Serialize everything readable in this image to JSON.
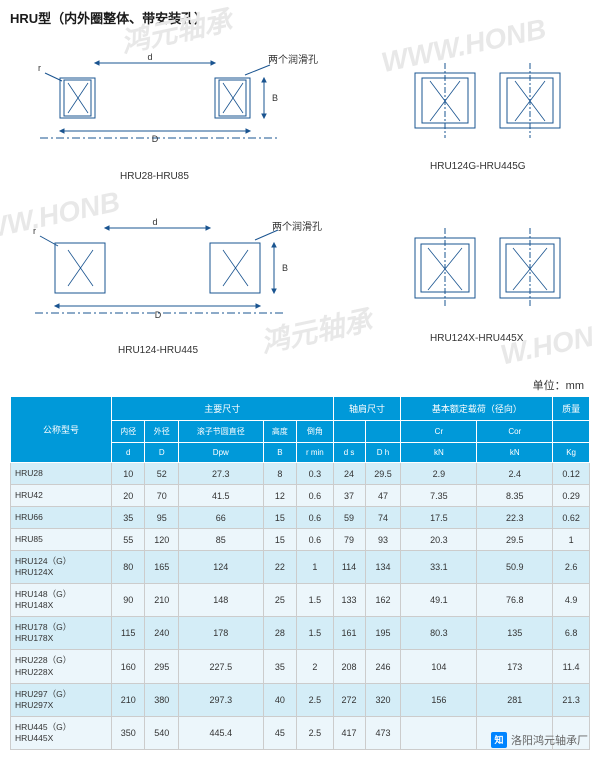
{
  "title": "HRU型（内外圈整体、带安装孔）",
  "unit_label": "单位：mm",
  "diagrams": {
    "top_left_caption": "HRU28-HRU85",
    "top_right_caption": "HRU124G-HRU445G",
    "bottom_left_caption": "HRU124-HRU445",
    "bottom_right_caption": "HRU124X-HRU445X",
    "annot1": "两个润滑孔",
    "annot2": "两个润滑孔",
    "dim_d": "d",
    "dim_D": "D",
    "dim_B": "B",
    "dim_r": "r"
  },
  "table": {
    "group_headers": [
      "公称型号",
      "主要尺寸",
      "轴肩尺寸",
      "基本额定载荷（径向）",
      "质量"
    ],
    "sub_headers": [
      {
        "l1": "内径",
        "l2": "d"
      },
      {
        "l1": "外径",
        "l2": "D"
      },
      {
        "l1": "滚子节圆直径",
        "l2": "Dpw"
      },
      {
        "l1": "高度",
        "l2": "B"
      },
      {
        "l1": "倒角",
        "l2": "r min"
      },
      {
        "l1": "",
        "l2": "d s"
      },
      {
        "l1": "",
        "l2": "D h"
      },
      {
        "l1": "Cr",
        "l2": "kN"
      },
      {
        "l1": "Cor",
        "l2": "kN"
      },
      {
        "l1": "",
        "l2": "Kg"
      }
    ],
    "rows": [
      {
        "m": "HRU28",
        "v": [
          "10",
          "52",
          "27.3",
          "8",
          "0.3",
          "24",
          "29.5",
          "2.9",
          "2.4",
          "0.12"
        ]
      },
      {
        "m": "HRU42",
        "v": [
          "20",
          "70",
          "41.5",
          "12",
          "0.6",
          "37",
          "47",
          "7.35",
          "8.35",
          "0.29"
        ]
      },
      {
        "m": "HRU66",
        "v": [
          "35",
          "95",
          "66",
          "15",
          "0.6",
          "59",
          "74",
          "17.5",
          "22.3",
          "0.62"
        ]
      },
      {
        "m": "HRU85",
        "v": [
          "55",
          "120",
          "85",
          "15",
          "0.6",
          "79",
          "93",
          "20.3",
          "29.5",
          "1"
        ]
      },
      {
        "m": "HRU124（G）<br>HRU124X",
        "v": [
          "80",
          "165",
          "124",
          "22",
          "1",
          "114",
          "134",
          "33.1",
          "50.9",
          "2.6"
        ]
      },
      {
        "m": "HRU148（G）<br>HRU148X",
        "v": [
          "90",
          "210",
          "148",
          "25",
          "1.5",
          "133",
          "162",
          "49.1",
          "76.8",
          "4.9"
        ]
      },
      {
        "m": "HRU178（G）<br>HRU178X",
        "v": [
          "115",
          "240",
          "178",
          "28",
          "1.5",
          "161",
          "195",
          "80.3",
          "135",
          "6.8"
        ]
      },
      {
        "m": "HRU228（G）<br>HRU228X",
        "v": [
          "160",
          "295",
          "227.5",
          "35",
          "2",
          "208",
          "246",
          "104",
          "173",
          "11.4"
        ]
      },
      {
        "m": "HRU297（G）<br>HRU297X",
        "v": [
          "210",
          "380",
          "297.3",
          "40",
          "2.5",
          "272",
          "320",
          "156",
          "281",
          "21.3"
        ]
      },
      {
        "m": "HRU445（G）<br>HRU445X",
        "v": [
          "350",
          "540",
          "445.4",
          "45",
          "2.5",
          "417",
          "473",
          "",
          "",
          ""
        ]
      }
    ]
  },
  "watermarks": [
    "鸿元轴承",
    "WWW.HONB",
    "WWW.HONB",
    "鸿元轴承",
    "W.HON"
  ],
  "zhihu": "洛阳鸿元轴承厂",
  "zhihu_logo": "知"
}
